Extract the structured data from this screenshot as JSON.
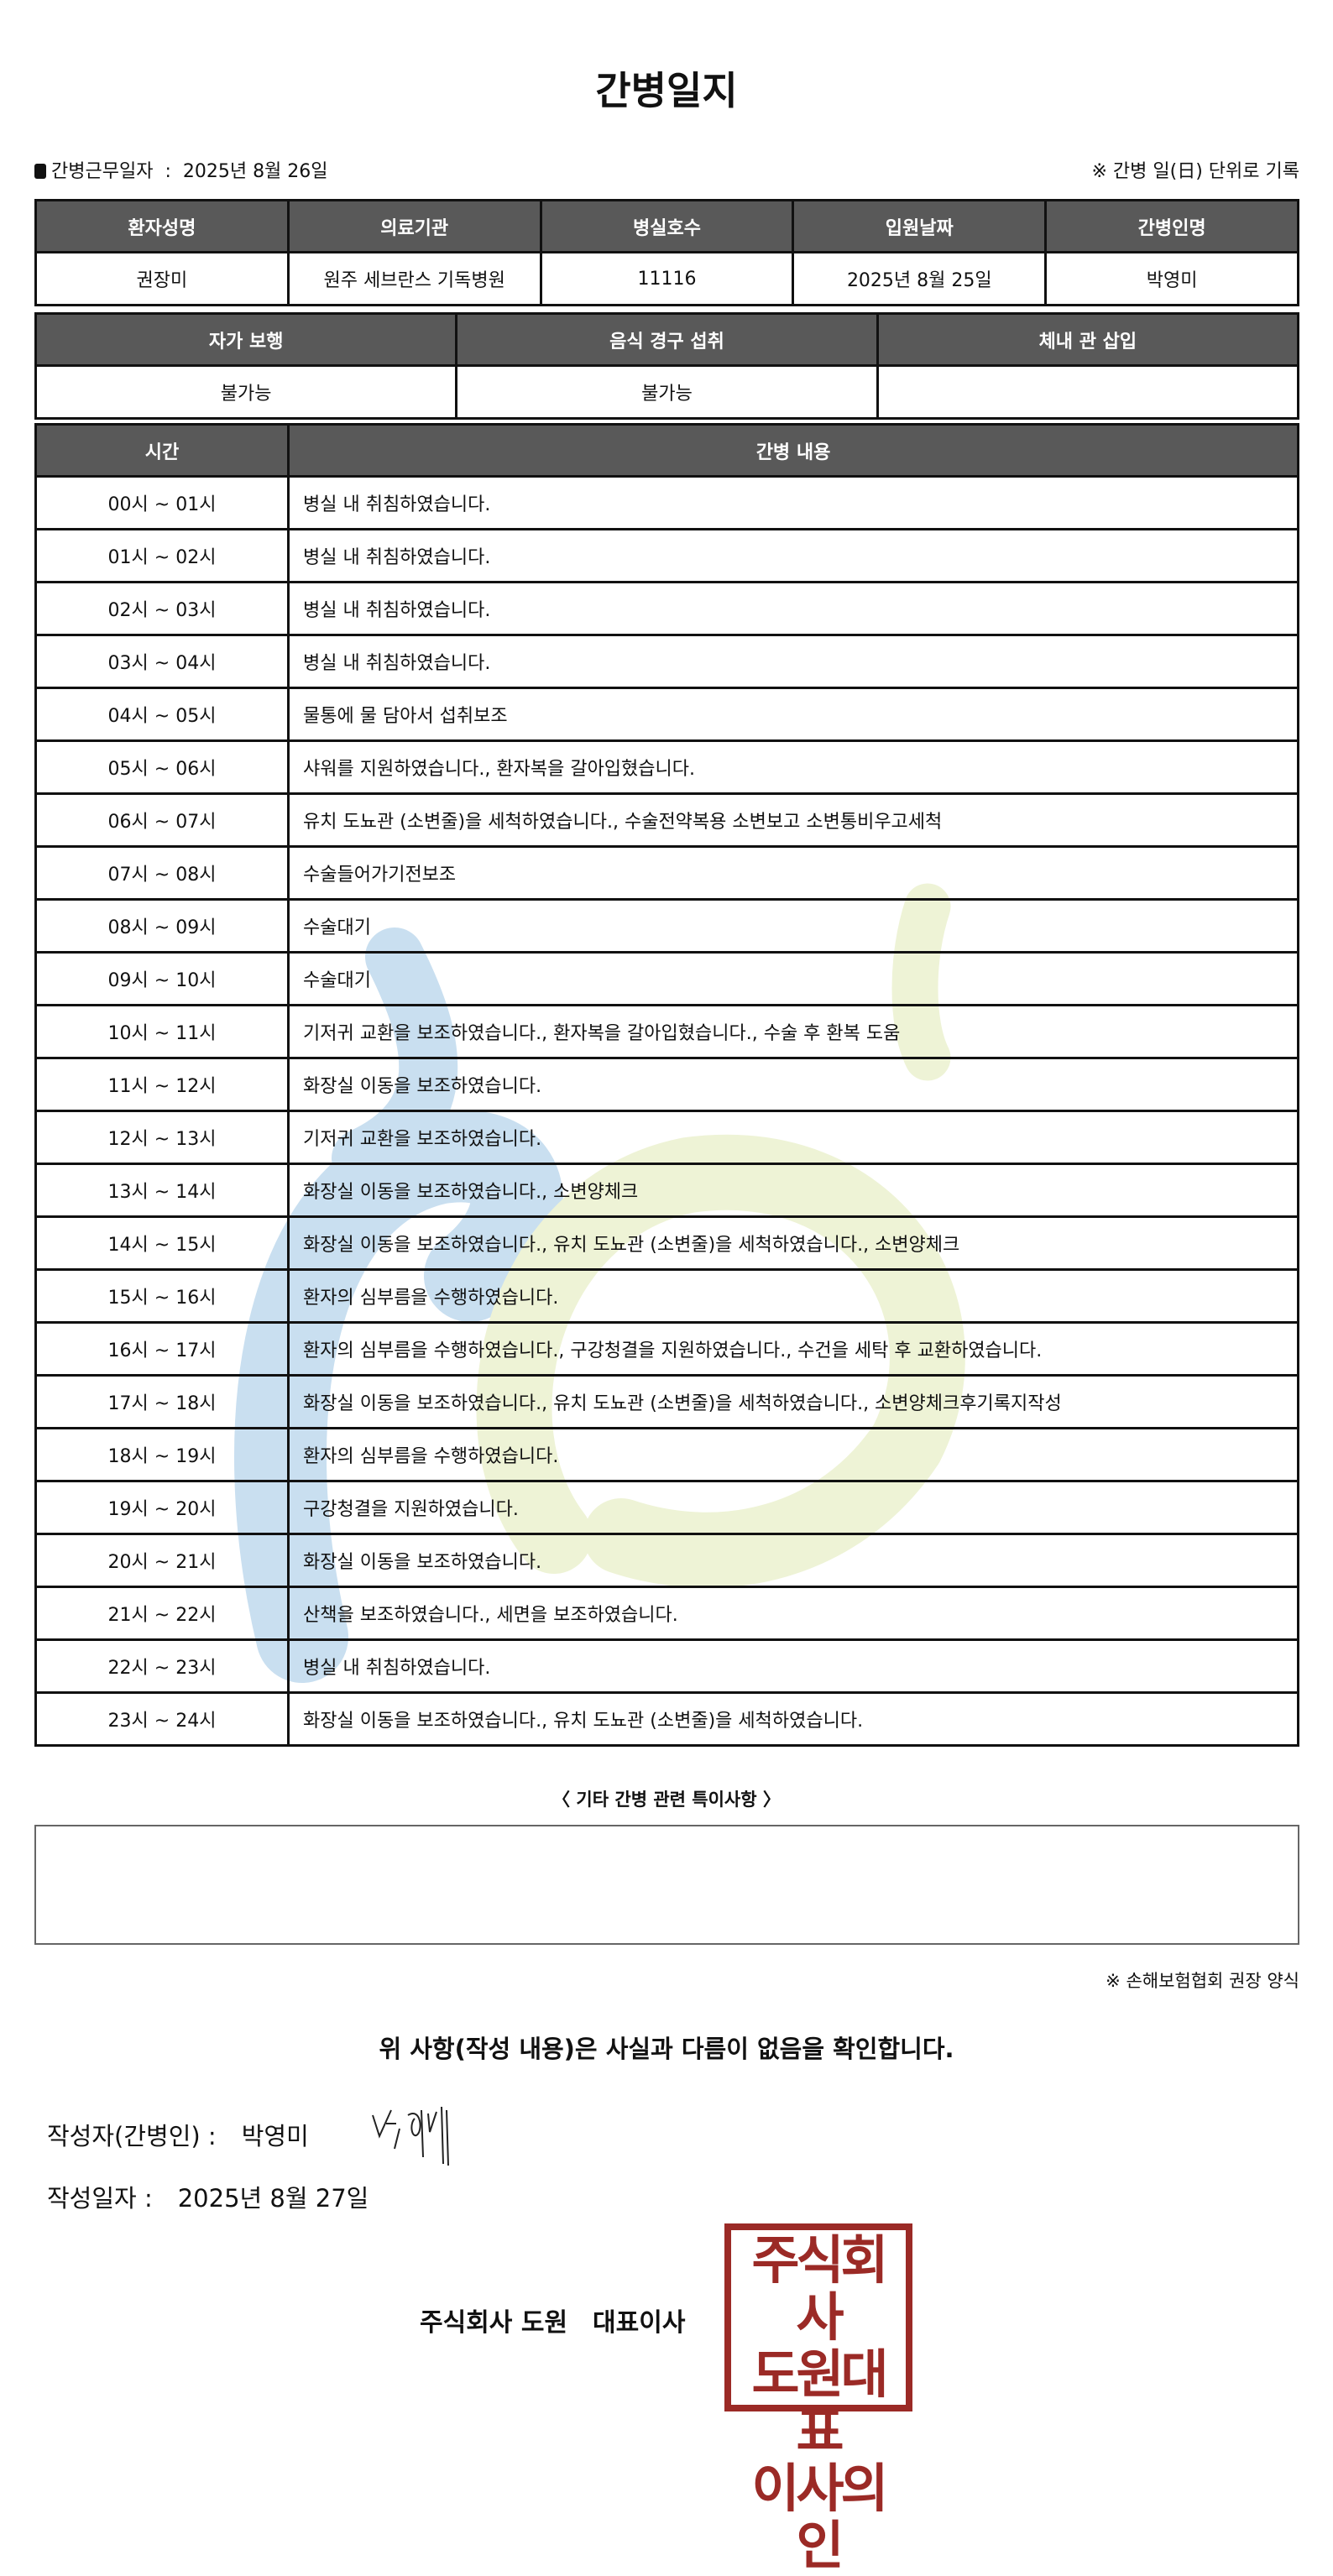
{
  "title": "간병일지",
  "work_date_label": "간병근무일자",
  "work_date": "2025년 8월 26일",
  "unit_note": "※ 간병 일(日) 단위로 기록",
  "info": {
    "headers": [
      "환자성명",
      "의료기관",
      "병실호수",
      "입원날짜",
      "간병인명"
    ],
    "values": [
      "권장미",
      "원주 세브란스 기독병원",
      "11116",
      "2025년 8월 25일",
      "박영미"
    ]
  },
  "status": {
    "headers": [
      "자가 보행",
      "음식 경구 섭취",
      "체내 관 삽입"
    ],
    "values": [
      "불가능",
      "불가능",
      ""
    ]
  },
  "log": {
    "headers": [
      "시간",
      "간병 내용"
    ],
    "rows": [
      {
        "time": "00시 ~ 01시",
        "content": "병실 내 취침하였습니다."
      },
      {
        "time": "01시 ~ 02시",
        "content": "병실 내 취침하였습니다."
      },
      {
        "time": "02시 ~ 03시",
        "content": "병실 내 취침하였습니다."
      },
      {
        "time": "03시 ~ 04시",
        "content": "병실 내 취침하였습니다."
      },
      {
        "time": "04시 ~ 05시",
        "content": "물통에 물 담아서 섭취보조"
      },
      {
        "time": "05시 ~ 06시",
        "content": "샤워를 지원하였습니다., 환자복을 갈아입혔습니다."
      },
      {
        "time": "06시 ~ 07시",
        "content": "유치 도뇨관 (소변줄)을 세척하였습니다., 수술전약복용 소변보고 소변통비우고세척"
      },
      {
        "time": "07시 ~ 08시",
        "content": "수술들어가기전보조"
      },
      {
        "time": "08시 ~ 09시",
        "content": "수술대기"
      },
      {
        "time": "09시 ~ 10시",
        "content": "수술대기"
      },
      {
        "time": "10시 ~ 11시",
        "content": "기저귀 교환을 보조하였습니다., 환자복을 갈아입혔습니다., 수술 후 환복 도움"
      },
      {
        "time": "11시 ~ 12시",
        "content": "화장실 이동을 보조하였습니다."
      },
      {
        "time": "12시 ~ 13시",
        "content": "기저귀 교환을 보조하였습니다."
      },
      {
        "time": "13시 ~ 14시",
        "content": "화장실 이동을 보조하였습니다., 소변양체크"
      },
      {
        "time": "14시 ~ 15시",
        "content": "화장실 이동을 보조하였습니다., 유치 도뇨관 (소변줄)을 세척하였습니다., 소변양체크"
      },
      {
        "time": "15시 ~ 16시",
        "content": "환자의 심부름을 수행하였습니다."
      },
      {
        "time": "16시 ~ 17시",
        "content": "환자의 심부름을 수행하였습니다., 구강청결을 지원하였습니다., 수건을 세탁 후 교환하였습니다."
      },
      {
        "time": "17시 ~ 18시",
        "content": "화장실 이동을 보조하였습니다., 유치 도뇨관 (소변줄)을 세척하였습니다., 소변양체크후기록지작성"
      },
      {
        "time": "18시 ~ 19시",
        "content": "환자의 심부름을 수행하였습니다."
      },
      {
        "time": "19시 ~ 20시",
        "content": "구강청결을 지원하였습니다."
      },
      {
        "time": "20시 ~ 21시",
        "content": "화장실 이동을 보조하였습니다."
      },
      {
        "time": "21시 ~ 22시",
        "content": "산책을 보조하였습니다., 세면을 보조하였습니다."
      },
      {
        "time": "22시 ~ 23시",
        "content": "병실 내 취침하였습니다."
      },
      {
        "time": "23시 ~ 24시",
        "content": "화장실 이동을 보조하였습니다., 유치 도뇨관 (소변줄)을 세척하였습니다."
      }
    ]
  },
  "notes_title": "〈 기타 간병 관련 특이사항 〉",
  "notes": "",
  "source_note": "※ 손해보험협회 권장 양식",
  "confirm": "위 사항(작성 내용)은 사실과 다름이 없음을 확인합니다.",
  "writer_label": "작성자(간병인) :",
  "writer": "박영미",
  "signature": "박영미",
  "written_label": "작성일자 :",
  "written_date": "2025년 8월 27일",
  "company": "주식회사 도원",
  "ceo_label": "대표이사",
  "seal_text": [
    "주식회사",
    "도원대표",
    "이사의인"
  ],
  "colors": {
    "header_bg": "#595959",
    "seal": "#9b2a26",
    "watermark_blue": "#c9dff0",
    "watermark_yellow": "#eef3d6"
  }
}
